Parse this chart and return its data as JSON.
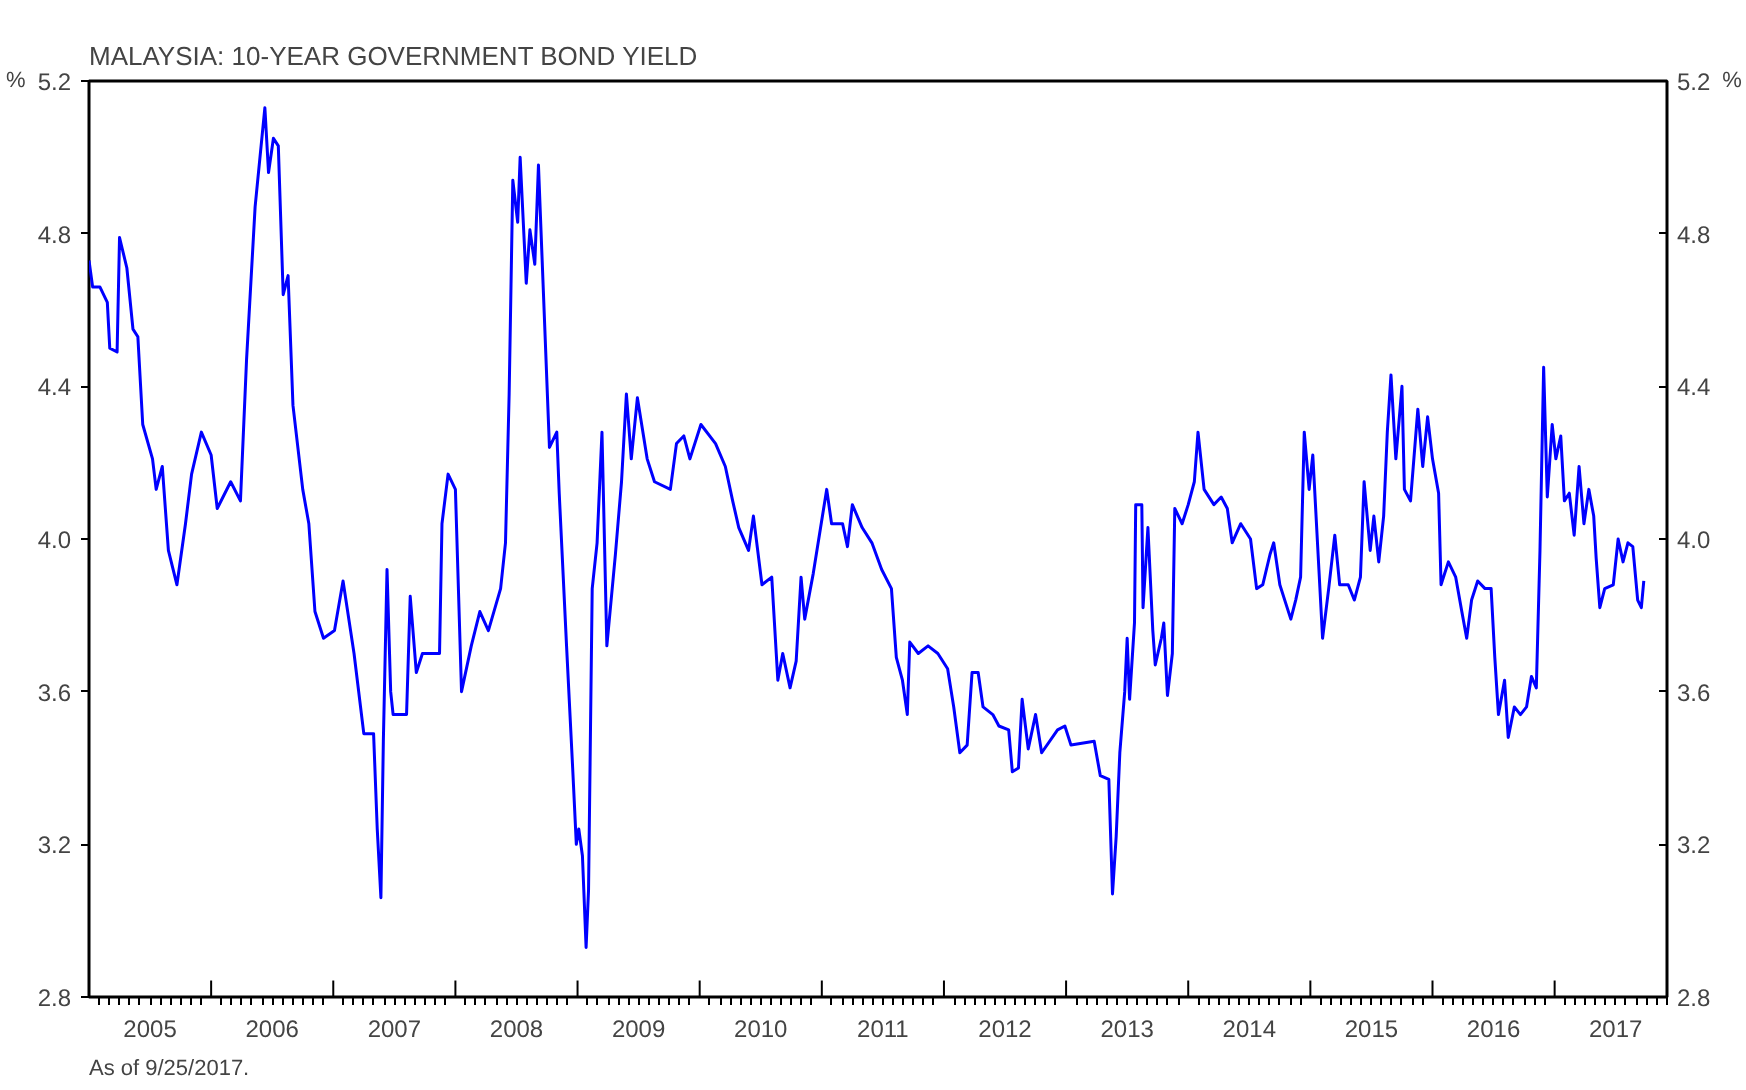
{
  "chart_data": {
    "type": "line",
    "title": "MALAYSIA: 10-YEAR GOVERNMENT BOND YIELD",
    "ylabel": "%",
    "y2label": "%",
    "annotations": [
      "As of  9/25/2017."
    ],
    "x": [
      2005.0,
      2005.03,
      2005.09,
      2005.15,
      2005.17,
      2005.23,
      2005.25,
      2005.31,
      2005.36,
      2005.4,
      2005.44,
      2005.52,
      2005.55,
      2005.6,
      2005.65,
      2005.72,
      2005.79,
      2005.84,
      2005.92,
      2006.0,
      2006.05,
      2006.16,
      2006.24,
      2006.29,
      2006.36,
      2006.44,
      2006.47,
      2006.51,
      2006.55,
      2006.59,
      2006.63,
      2006.67,
      2006.75,
      2006.8,
      2006.85,
      2006.92,
      2007.01,
      2007.08,
      2007.17,
      2007.25,
      2007.33,
      2007.36,
      2007.39,
      2007.41,
      2007.44,
      2007.47,
      2007.49,
      2007.6,
      2007.63,
      2007.68,
      2007.73,
      2007.87,
      2007.89,
      2007.94,
      2008.0,
      2008.05,
      2008.13,
      2008.2,
      2008.27,
      2008.37,
      2008.41,
      2008.44,
      2008.47,
      2008.51,
      2008.53,
      2008.58,
      2008.61,
      2008.65,
      2008.68,
      2008.72,
      2008.77,
      2008.83,
      2008.85,
      2008.91,
      2008.96,
      2008.99,
      2009.01,
      2009.04,
      2009.07,
      2009.09,
      2009.12,
      2009.16,
      2009.2,
      2009.24,
      2009.31,
      2009.36,
      2009.4,
      2009.44,
      2009.49,
      2009.57,
      2009.63,
      2009.76,
      2009.81,
      2009.87,
      2009.92,
      2010.01,
      2010.13,
      2010.21,
      2010.27,
      2010.32,
      2010.4,
      2010.44,
      2010.51,
      2010.59,
      2010.64,
      2010.68,
      2010.74,
      2010.79,
      2010.83,
      2010.86,
      2010.93,
      2010.99,
      2011.04,
      2011.08,
      2011.17,
      2011.21,
      2011.25,
      2011.33,
      2011.41,
      2011.49,
      2011.57,
      2011.61,
      2011.66,
      2011.7,
      2011.72,
      2011.79,
      2011.87,
      2011.95,
      2012.03,
      2012.08,
      2012.13,
      2012.19,
      2012.23,
      2012.28,
      2012.32,
      2012.4,
      2012.45,
      2012.53,
      2012.56,
      2012.61,
      2012.64,
      2012.69,
      2012.75,
      2012.8,
      2012.93,
      2012.99,
      2013.04,
      2013.23,
      2013.28,
      2013.35,
      2013.38,
      2013.41,
      2013.44,
      2013.48,
      2013.5,
      2013.52,
      2013.56,
      2013.57,
      2013.62,
      2013.63,
      2013.67,
      2013.71,
      2013.73,
      2013.78,
      2013.8,
      2013.83,
      2013.87,
      2013.89,
      2013.95,
      2014.0,
      2014.05,
      2014.08,
      2014.13,
      2014.21,
      2014.27,
      2014.32,
      2014.36,
      2014.43,
      2014.51,
      2014.56,
      2014.61,
      2014.67,
      2014.7,
      2014.75,
      2014.8,
      2014.84,
      2014.88,
      2014.92,
      2014.95,
      2014.99,
      2015.02,
      2015.07,
      2015.1,
      2015.15,
      2015.2,
      2015.24,
      2015.31,
      2015.36,
      2015.41,
      2015.44,
      2015.49,
      2015.52,
      2015.56,
      2015.6,
      2015.63,
      2015.66,
      2015.7,
      2015.75,
      2015.77,
      2015.82,
      2015.88,
      2015.92,
      2015.96,
      2016.0,
      2016.05,
      2016.07,
      2016.13,
      2016.19,
      2016.24,
      2016.28,
      2016.32,
      2016.37,
      2016.43,
      2016.48,
      2016.51,
      2016.54,
      2016.59,
      2016.62,
      2016.67,
      2016.72,
      2016.77,
      2016.81,
      2016.85,
      2016.88,
      2016.91,
      2016.94,
      2016.98,
      2017.01,
      2017.05,
      2017.08,
      2017.12,
      2017.16,
      2017.2,
      2017.24,
      2017.28,
      2017.32,
      2017.34,
      2017.37,
      2017.41,
      2017.48,
      2017.52,
      2017.56,
      2017.6,
      2017.64,
      2017.68,
      2017.71,
      2017.73
    ],
    "series": [
      {
        "color": "#0000ff",
        "values": [
          4.73,
          4.66,
          4.66,
          4.62,
          4.5,
          4.49,
          4.79,
          4.71,
          4.55,
          4.53,
          4.3,
          4.21,
          4.13,
          4.19,
          3.97,
          3.88,
          4.04,
          4.17,
          4.28,
          4.22,
          4.08,
          4.15,
          4.1,
          4.47,
          4.87,
          5.13,
          4.96,
          5.05,
          5.03,
          4.64,
          4.69,
          4.35,
          4.13,
          4.04,
          3.81,
          3.74,
          3.76,
          3.89,
          3.7,
          3.49,
          3.49,
          3.24,
          3.06,
          3.47,
          3.92,
          3.6,
          3.54,
          3.54,
          3.85,
          3.65,
          3.7,
          3.7,
          4.04,
          4.17,
          4.13,
          3.6,
          3.72,
          3.81,
          3.76,
          3.87,
          3.99,
          4.38,
          4.94,
          4.83,
          5.0,
          4.67,
          4.81,
          4.72,
          4.98,
          4.65,
          4.24,
          4.28,
          4.12,
          3.72,
          3.4,
          3.2,
          3.24,
          3.17,
          2.93,
          3.08,
          3.87,
          3.99,
          4.28,
          3.72,
          3.96,
          4.15,
          4.38,
          4.21,
          4.37,
          4.21,
          4.15,
          4.13,
          4.25,
          4.27,
          4.21,
          4.3,
          4.25,
          4.19,
          4.1,
          4.03,
          3.97,
          4.06,
          3.88,
          3.9,
          3.63,
          3.7,
          3.61,
          3.68,
          3.9,
          3.79,
          3.91,
          4.03,
          4.13,
          4.04,
          4.04,
          3.98,
          4.09,
          4.03,
          3.99,
          3.92,
          3.87,
          3.69,
          3.63,
          3.54,
          3.73,
          3.7,
          3.72,
          3.7,
          3.66,
          3.56,
          3.44,
          3.46,
          3.65,
          3.65,
          3.56,
          3.54,
          3.51,
          3.5,
          3.39,
          3.4,
          3.58,
          3.45,
          3.54,
          3.44,
          3.5,
          3.51,
          3.46,
          3.47,
          3.38,
          3.37,
          3.07,
          3.22,
          3.44,
          3.6,
          3.74,
          3.58,
          3.78,
          4.09,
          4.09,
          3.82,
          4.03,
          3.76,
          3.67,
          3.74,
          3.78,
          3.59,
          3.7,
          4.08,
          4.04,
          4.09,
          4.15,
          4.28,
          4.13,
          4.09,
          4.11,
          4.08,
          3.99,
          4.04,
          4.0,
          3.87,
          3.88,
          3.96,
          3.99,
          3.88,
          3.83,
          3.79,
          3.84,
          3.9,
          4.28,
          4.13,
          4.22,
          3.92,
          3.74,
          3.87,
          4.01,
          3.88,
          3.88,
          3.84,
          3.9,
          4.15,
          3.97,
          4.06,
          3.94,
          4.06,
          4.28,
          4.43,
          4.21,
          4.4,
          4.13,
          4.1,
          4.34,
          4.19,
          4.32,
          4.21,
          4.12,
          3.88,
          3.94,
          3.9,
          3.81,
          3.74,
          3.84,
          3.89,
          3.87,
          3.87,
          3.69,
          3.54,
          3.63,
          3.48,
          3.56,
          3.54,
          3.56,
          3.64,
          3.61,
          3.97,
          4.45,
          4.11,
          4.3,
          4.21,
          4.27,
          4.1,
          4.12,
          4.01,
          4.19,
          4.04,
          4.13,
          4.06,
          3.95,
          3.82,
          3.87,
          3.88,
          4.0,
          3.94,
          3.99,
          3.98,
          3.84,
          3.82,
          3.89
        ]
      }
    ],
    "xlim": [
      2005.0,
      2017.92
    ],
    "xticks": [
      {
        "value": 2005.5,
        "label": "2005"
      },
      {
        "value": 2006.5,
        "label": "2006"
      },
      {
        "value": 2007.5,
        "label": "2007"
      },
      {
        "value": 2008.5,
        "label": "2008"
      },
      {
        "value": 2009.5,
        "label": "2009"
      },
      {
        "value": 2010.5,
        "label": "2010"
      },
      {
        "value": 2011.5,
        "label": "2011"
      },
      {
        "value": 2012.5,
        "label": "2012"
      },
      {
        "value": 2013.5,
        "label": "2013"
      },
      {
        "value": 2014.5,
        "label": "2014"
      },
      {
        "value": 2015.5,
        "label": "2015"
      },
      {
        "value": 2016.5,
        "label": "2016"
      },
      {
        "value": 2017.5,
        "label": "2017"
      },
      {
        "value": 2006,
        "label": null
      },
      {
        "value": 2007,
        "label": null
      },
      {
        "value": 2008,
        "label": null
      },
      {
        "value": 2009,
        "label": null
      },
      {
        "value": 2010,
        "label": null
      },
      {
        "value": 2011,
        "label": null
      },
      {
        "value": 2012,
        "label": null
      },
      {
        "value": 2013,
        "label": null
      },
      {
        "value": 2014,
        "label": null
      },
      {
        "value": 2015,
        "label": null
      },
      {
        "value": 2016,
        "label": null
      },
      {
        "value": 2017,
        "label": null
      }
    ],
    "ylim": [
      2.8,
      5.2
    ],
    "yticks": [
      2.8,
      3.2,
      3.6,
      {
        "value": 4,
        "label": "4.0"
      },
      4.4,
      4.8,
      5.2
    ],
    "y2lim": [
      2.8,
      5.2
    ],
    "y2ticks": [
      2.8,
      3.2,
      3.6,
      {
        "value": 4,
        "label": "4.0"
      },
      4.4,
      4.8,
      5.2
    ],
    "grid": false,
    "marker": "none",
    "line_style": "solid"
  }
}
